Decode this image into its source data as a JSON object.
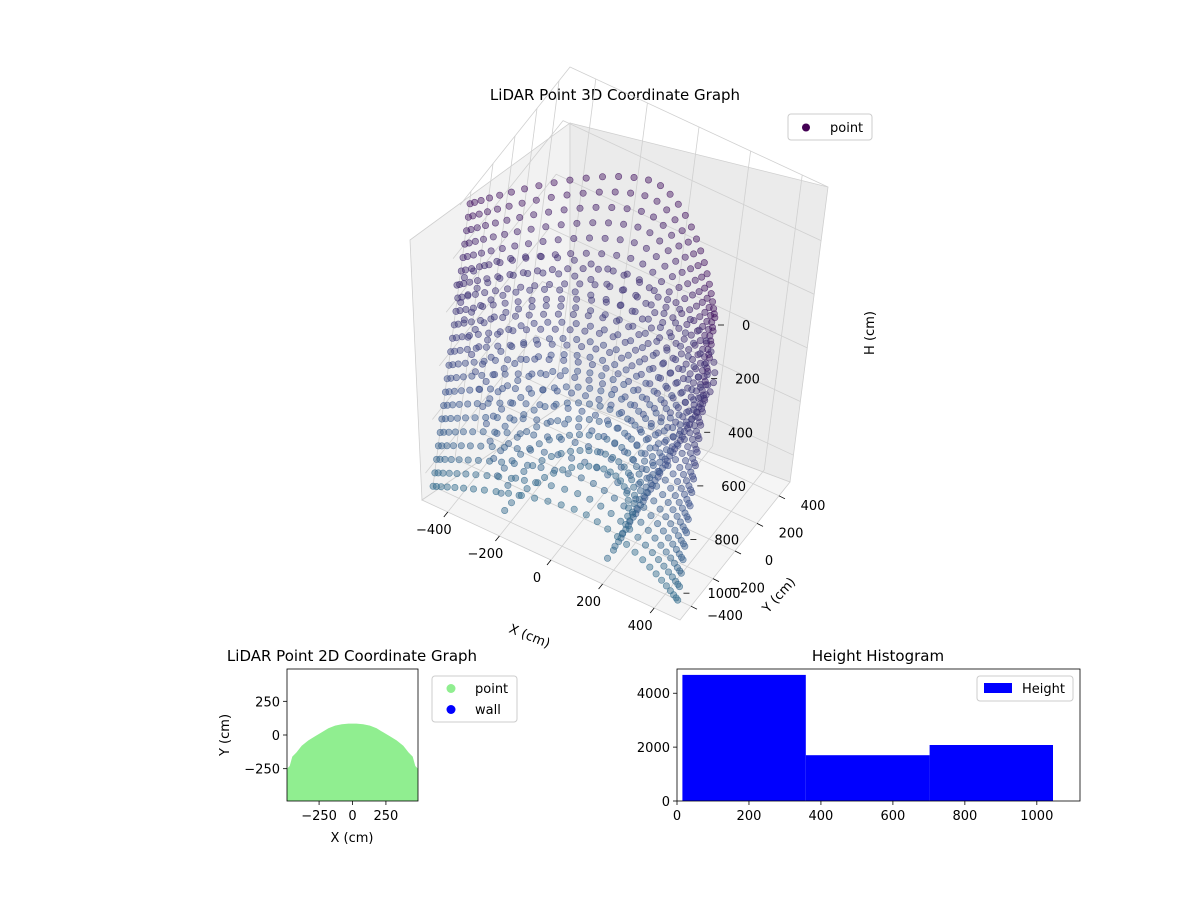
{
  "chart_data": [
    {
      "type": "scatter3d",
      "title": "LiDAR Point 3D Coordinate Graph",
      "xlabel": "X (cm)",
      "ylabel": "Y (cm)",
      "zlabel": "H (cm)",
      "xticks": [
        -400,
        -200,
        0,
        200,
        400
      ],
      "yticks": [
        -400,
        -200,
        0,
        200,
        400
      ],
      "zticks": [
        0,
        200,
        400,
        600,
        800,
        1000
      ],
      "xlim": [
        -500,
        500
      ],
      "ylim": [
        -500,
        500
      ],
      "zlim": [
        0,
        1100
      ],
      "zaxis_inverted": true,
      "grid": true,
      "legend": [
        {
          "label": "point",
          "color": "#440154"
        }
      ],
      "legend_position": "upper-right",
      "colormap": "viridis",
      "shape": {
        "description": "rings of points sampled on a cylinder-like surface",
        "radius": 480,
        "h_min": 0,
        "h_max": 1050,
        "y_min": -480,
        "y_max": 100
      }
    },
    {
      "type": "scatter",
      "title": "LiDAR Point 2D Coordinate Graph",
      "xlabel": "X (cm)",
      "ylabel": "Y (cm)",
      "xticks": [
        -250,
        0,
        250
      ],
      "yticks": [
        -250,
        0,
        250
      ],
      "xlim": [
        -490,
        490
      ],
      "ylim": [
        -490,
        490
      ],
      "legend": [
        {
          "label": "point",
          "color": "#90ee90"
        },
        {
          "label": "wall",
          "color": "#0000ff"
        }
      ],
      "legend_position": "outside-right",
      "series": [
        {
          "name": "point",
          "color": "#90ee90",
          "outline": [
            [
              -490,
              -490
            ],
            [
              -490,
              -250
            ],
            [
              -470,
              -230
            ],
            [
              -450,
              -160
            ],
            [
              -420,
              -130
            ],
            [
              -380,
              -80
            ],
            [
              -330,
              -40
            ],
            [
              -280,
              -10
            ],
            [
              -230,
              20
            ],
            [
              -180,
              50
            ],
            [
              -130,
              70
            ],
            [
              -80,
              80
            ],
            [
              -30,
              85
            ],
            [
              30,
              85
            ],
            [
              80,
              80
            ],
            [
              130,
              70
            ],
            [
              180,
              50
            ],
            [
              230,
              20
            ],
            [
              280,
              -10
            ],
            [
              330,
              -40
            ],
            [
              380,
              -80
            ],
            [
              420,
              -130
            ],
            [
              450,
              -160
            ],
            [
              470,
              -230
            ],
            [
              490,
              -250
            ],
            [
              490,
              -490
            ]
          ]
        },
        {
          "name": "wall",
          "color": "#0000ff",
          "points": []
        }
      ]
    },
    {
      "type": "bar",
      "title": "Height Histogram",
      "xlabel": "",
      "ylabel": "",
      "xticks": [
        0,
        200,
        400,
        600,
        800,
        1000
      ],
      "yticks": [
        0,
        2000,
        4000
      ],
      "xlim": [
        0,
        1120
      ],
      "ylim": [
        0,
        4900
      ],
      "legend": [
        {
          "label": "Height",
          "color": "#0000ff"
        }
      ],
      "legend_position": "upper-right",
      "series": [
        {
          "name": "Height",
          "color": "#0000ff",
          "bins": [
            {
              "start": 15,
              "end": 358,
              "count": 4680
            },
            {
              "start": 358,
              "end": 702,
              "count": 1700
            },
            {
              "start": 702,
              "end": 1045,
              "count": 2080
            }
          ]
        }
      ]
    }
  ]
}
